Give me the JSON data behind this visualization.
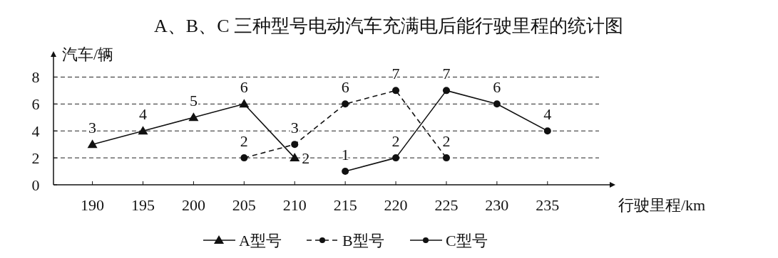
{
  "chart_data": {
    "type": "line",
    "title": "A、B、C 三种型号电动汽车充满电后能行驶里程的统计图",
    "xlabel": "行驶里程/km",
    "ylabel": "汽车/辆",
    "categories": [
      "190",
      "195",
      "200",
      "205",
      "210",
      "215",
      "220",
      "225",
      "230",
      "235"
    ],
    "series": [
      {
        "name": "A型号",
        "color": "#111111",
        "marker": "triangle",
        "line_style": "solid",
        "values": [
          3,
          4,
          5,
          6,
          2,
          null,
          null,
          null,
          null,
          null
        ]
      },
      {
        "name": "B型号",
        "color": "#111111",
        "marker": "circle",
        "line_style": "dashed",
        "values": [
          null,
          null,
          null,
          2,
          3,
          6,
          7,
          2,
          null,
          null
        ]
      },
      {
        "name": "C型号",
        "color": "#111111",
        "marker": "circle",
        "line_style": "solid",
        "values": [
          null,
          null,
          null,
          null,
          null,
          1,
          2,
          7,
          6,
          4
        ]
      }
    ],
    "ylim": [
      0,
      9.5
    ],
    "yticks": [
      0,
      2,
      4,
      6,
      8
    ],
    "grid": "y",
    "legend": "bottom",
    "data_labels": true
  }
}
